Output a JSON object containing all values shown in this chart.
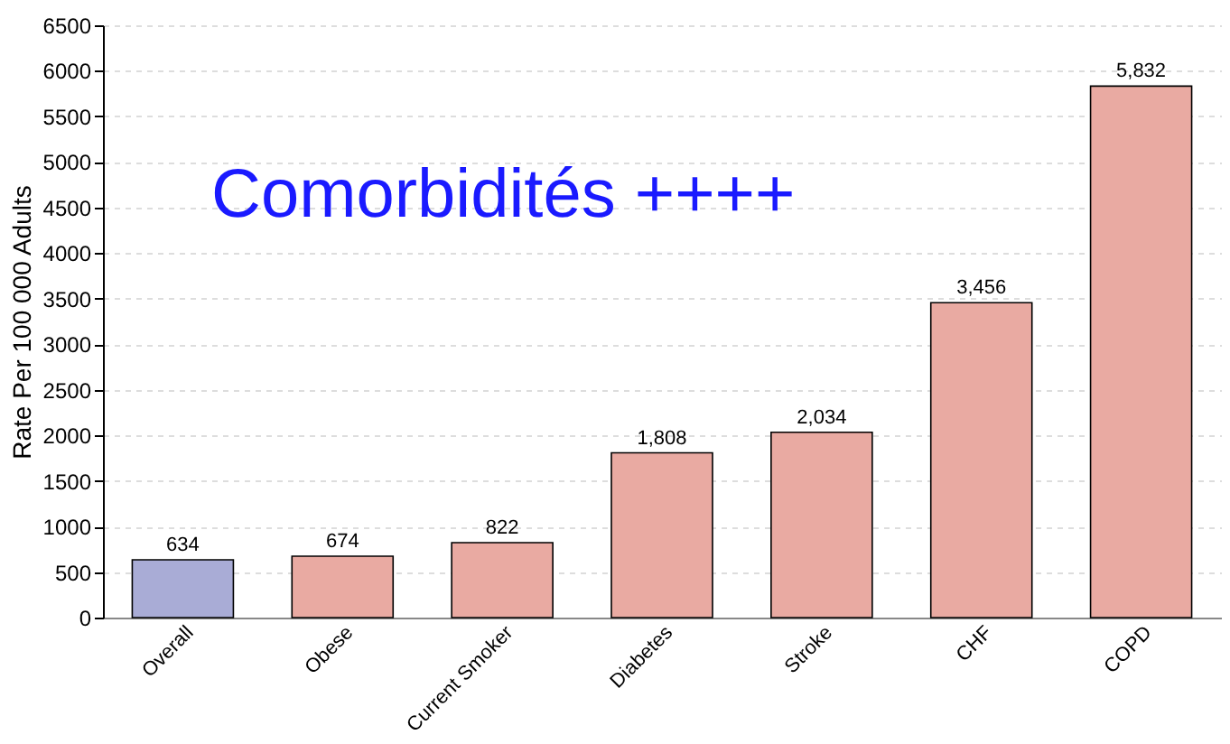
{
  "chart_data": {
    "type": "bar",
    "ylabel": "Rate Per 100 000 Adults",
    "categories": [
      "Overall",
      "Obese",
      "Current Smoker",
      "Diabetes",
      "Stroke",
      "CHF",
      "COPD"
    ],
    "values": [
      634,
      674,
      822,
      1808,
      2034,
      3456,
      5832
    ],
    "value_labels": [
      "634",
      "674",
      "822",
      "1,808",
      "2,034",
      "3,456",
      "5,832"
    ],
    "colors": [
      "#a9acd6",
      "#e9aaa2",
      "#e9aaa2",
      "#e9aaa2",
      "#e9aaa2",
      "#e9aaa2",
      "#e9aaa2"
    ],
    "ylim": [
      0,
      6500
    ],
    "yticks": [
      0,
      500,
      1000,
      1500,
      2000,
      2500,
      3000,
      3500,
      4000,
      4500,
      5000,
      5500,
      6000,
      6500
    ],
    "grid": "y",
    "annotations": [
      "Comorbidités  ++++"
    ]
  }
}
